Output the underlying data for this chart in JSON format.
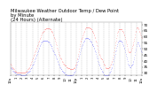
{
  "title_line1": "Milwaukee Weather Outdoor Temp / Dew Point",
  "title_line2": "by Minute",
  "title_line3": "(24 Hours) (Alternate)",
  "bg_color": "#ffffff",
  "plot_bg_color": "#ffffff",
  "text_color": "#000000",
  "grid_color": "#aaaaaa",
  "temp_color": "#ff0000",
  "dew_color": "#0000ff",
  "ylim": [
    28,
    72
  ],
  "yticks": [
    30,
    35,
    40,
    45,
    50,
    55,
    60,
    65,
    70
  ],
  "title_fontsize": 3.8,
  "tick_fontsize": 3.0,
  "temp_data": [
    38,
    37,
    36,
    35,
    35,
    34,
    34,
    33,
    33,
    32,
    32,
    31,
    31,
    31,
    30,
    30,
    30,
    30,
    30,
    30,
    30,
    30,
    30,
    30,
    30,
    30,
    30,
    30,
    30,
    30,
    30,
    30,
    30,
    30,
    31,
    31,
    31,
    32,
    32,
    33,
    33,
    34,
    34,
    35,
    36,
    37,
    38,
    39,
    40,
    41,
    42,
    43,
    44,
    45,
    46,
    47,
    48,
    49,
    50,
    51,
    52,
    53,
    54,
    55,
    56,
    57,
    58,
    59,
    60,
    61,
    62,
    63,
    63,
    64,
    64,
    65,
    65,
    66,
    66,
    66,
    67,
    67,
    67,
    67,
    67,
    67,
    67,
    67,
    67,
    66,
    66,
    66,
    65,
    65,
    64,
    64,
    63,
    62,
    61,
    60,
    59,
    58,
    57,
    55,
    54,
    53,
    51,
    50,
    49,
    47,
    46,
    45,
    44,
    43,
    42,
    42,
    41,
    40,
    39,
    39,
    38,
    38,
    37,
    37,
    36,
    36,
    36,
    35,
    35,
    35,
    34,
    34,
    34,
    34,
    34,
    33,
    33,
    33,
    33,
    33,
    33,
    33,
    33,
    34,
    34,
    34,
    35,
    36,
    37,
    38,
    39,
    41,
    42,
    44,
    46,
    48,
    50,
    52,
    54,
    56,
    57,
    58,
    59,
    60,
    61,
    62,
    63,
    64,
    65,
    66,
    67,
    68,
    68,
    68,
    68,
    68,
    68,
    68,
    68,
    68,
    67,
    67,
    67,
    66,
    66,
    65,
    65,
    64,
    63,
    63,
    62,
    61,
    60,
    59,
    57,
    56,
    55,
    53,
    52,
    50,
    49,
    47,
    46,
    45,
    44,
    43,
    42,
    42,
    41,
    41,
    40,
    39,
    38,
    37,
    37,
    36,
    35,
    34,
    34,
    34,
    34,
    34,
    34,
    34,
    35,
    35,
    35,
    36,
    37,
    38,
    39,
    40,
    41,
    43,
    45,
    47,
    49,
    51,
    53,
    55,
    57,
    59,
    61,
    63,
    64,
    65,
    66,
    66,
    66,
    66,
    66,
    66,
    66,
    66,
    65,
    65,
    64,
    63,
    62,
    61,
    60,
    58,
    57,
    55,
    54,
    52,
    50,
    49,
    48,
    47,
    47,
    47,
    47,
    48,
    49,
    50,
    51,
    52,
    53,
    54,
    55,
    57,
    58,
    60,
    62,
    64,
    65,
    67,
    68,
    68,
    68,
    67,
    66,
    65,
    64,
    63,
    62,
    61,
    60,
    59
  ],
  "dew_data": [
    35,
    34,
    34,
    33,
    33,
    32,
    32,
    31,
    31,
    30,
    30,
    30,
    30,
    29,
    29,
    29,
    29,
    29,
    29,
    29,
    29,
    29,
    29,
    29,
    28,
    28,
    28,
    28,
    28,
    28,
    28,
    28,
    28,
    28,
    29,
    29,
    29,
    30,
    30,
    30,
    31,
    31,
    31,
    32,
    32,
    33,
    34,
    34,
    35,
    36,
    37,
    37,
    38,
    39,
    40,
    41,
    42,
    43,
    44,
    45,
    46,
    47,
    48,
    49,
    50,
    51,
    52,
    53,
    54,
    55,
    55,
    56,
    56,
    57,
    57,
    57,
    57,
    57,
    57,
    57,
    57,
    57,
    57,
    57,
    56,
    56,
    56,
    55,
    55,
    54,
    54,
    53,
    52,
    52,
    51,
    50,
    49,
    49,
    48,
    47,
    46,
    46,
    45,
    44,
    43,
    42,
    41,
    40,
    39,
    38,
    37,
    36,
    35,
    35,
    34,
    33,
    33,
    32,
    32,
    31,
    31,
    30,
    30,
    30,
    29,
    29,
    29,
    29,
    28,
    28,
    28,
    28,
    28,
    28,
    28,
    28,
    28,
    28,
    28,
    28,
    28,
    28,
    29,
    29,
    30,
    30,
    31,
    32,
    33,
    35,
    36,
    37,
    39,
    40,
    41,
    43,
    44,
    46,
    47,
    49,
    50,
    51,
    52,
    53,
    54,
    55,
    56,
    57,
    57,
    58,
    59,
    59,
    59,
    59,
    59,
    59,
    59,
    58,
    58,
    58,
    57,
    57,
    56,
    56,
    55,
    54,
    54,
    53,
    52,
    52,
    51,
    50,
    49,
    48,
    47,
    46,
    44,
    43,
    42,
    40,
    39,
    38,
    37,
    36,
    35,
    34,
    33,
    33,
    32,
    31,
    31,
    30,
    29,
    29,
    28,
    28,
    28,
    28,
    28,
    28,
    28,
    28,
    28,
    29,
    29,
    30,
    30,
    31,
    32,
    33,
    34,
    35,
    37,
    38,
    40,
    41,
    43,
    44,
    46,
    48,
    49,
    51,
    52,
    54,
    55,
    56,
    57,
    57,
    57,
    57,
    57,
    57,
    56,
    56,
    55,
    54,
    53,
    52,
    51,
    50,
    49,
    47,
    46,
    44,
    43,
    41,
    40,
    38,
    37,
    36,
    36,
    35,
    35,
    35,
    36,
    36,
    37,
    37,
    38,
    39,
    40,
    41,
    43,
    45,
    47,
    49,
    50,
    52,
    54,
    55,
    55,
    55,
    54,
    53,
    52,
    51,
    50,
    49,
    48,
    47
  ],
  "x_tick_positions": [
    0,
    60,
    120,
    180,
    240,
    300,
    360,
    420,
    480,
    540,
    600,
    660,
    720,
    780,
    840,
    900,
    960,
    1020,
    1080,
    1140,
    1200,
    1260,
    1320,
    1380,
    1439
  ],
  "x_tick_labels": [
    "12a",
    "1",
    "2",
    "3",
    "4",
    "5",
    "6",
    "7",
    "8",
    "9",
    "10",
    "11",
    "12p",
    "1",
    "2",
    "3",
    "4",
    "5",
    "6",
    "7",
    "8",
    "9",
    "10",
    "11",
    "12a"
  ]
}
